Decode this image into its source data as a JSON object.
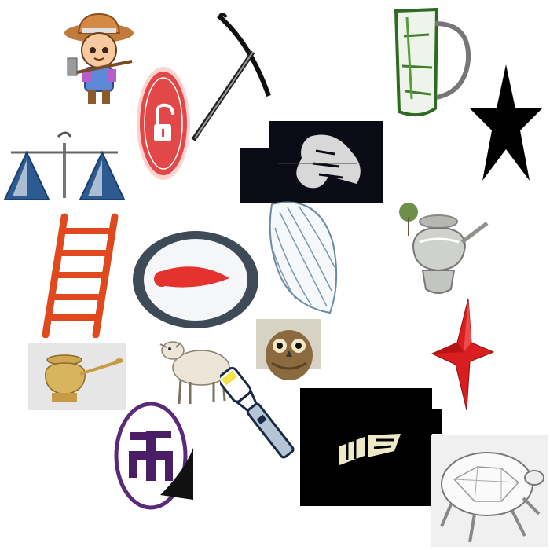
{
  "canvas": {
    "background": "#ffffff"
  },
  "items": [
    {
      "name": "farmer-icon",
      "icon": "farmer with hoe"
    },
    {
      "name": "pickaxe-icon",
      "icon": "pickaxe"
    },
    {
      "name": "pitcher-icon",
      "icon": "green glass pitcher"
    },
    {
      "name": "unlock-button-icon",
      "icon": "red unlock padlock button"
    },
    {
      "name": "black-star-icon",
      "icon": "black five-point star"
    },
    {
      "name": "balance-scale-icon",
      "icon": "balance scale"
    },
    {
      "name": "lion-logo-icon",
      "icon": "lion head on black"
    },
    {
      "name": "ladder-icon",
      "icon": "orange ladder"
    },
    {
      "name": "compass-icon",
      "icon": "compass with red needle"
    },
    {
      "name": "seashell-icon",
      "icon": "spiral seashell sketch"
    },
    {
      "name": "teapot-icon",
      "icon": "silver teapot with tree"
    },
    {
      "name": "lamb-icon",
      "icon": "lamb"
    },
    {
      "name": "owl-icon",
      "icon": "owl"
    },
    {
      "name": "red-star-icon",
      "icon": "red 3d star"
    },
    {
      "name": "brass-pot-icon",
      "icon": "brass pot with spoon"
    },
    {
      "name": "flashlight-icon",
      "icon": "flashlight"
    },
    {
      "name": "logo-block-icon",
      "icon": "yellow block logo on black"
    },
    {
      "name": "swastika-icon",
      "icon": "swastika in purple circle"
    },
    {
      "name": "turtle-icon",
      "icon": "turtle sketch"
    }
  ]
}
